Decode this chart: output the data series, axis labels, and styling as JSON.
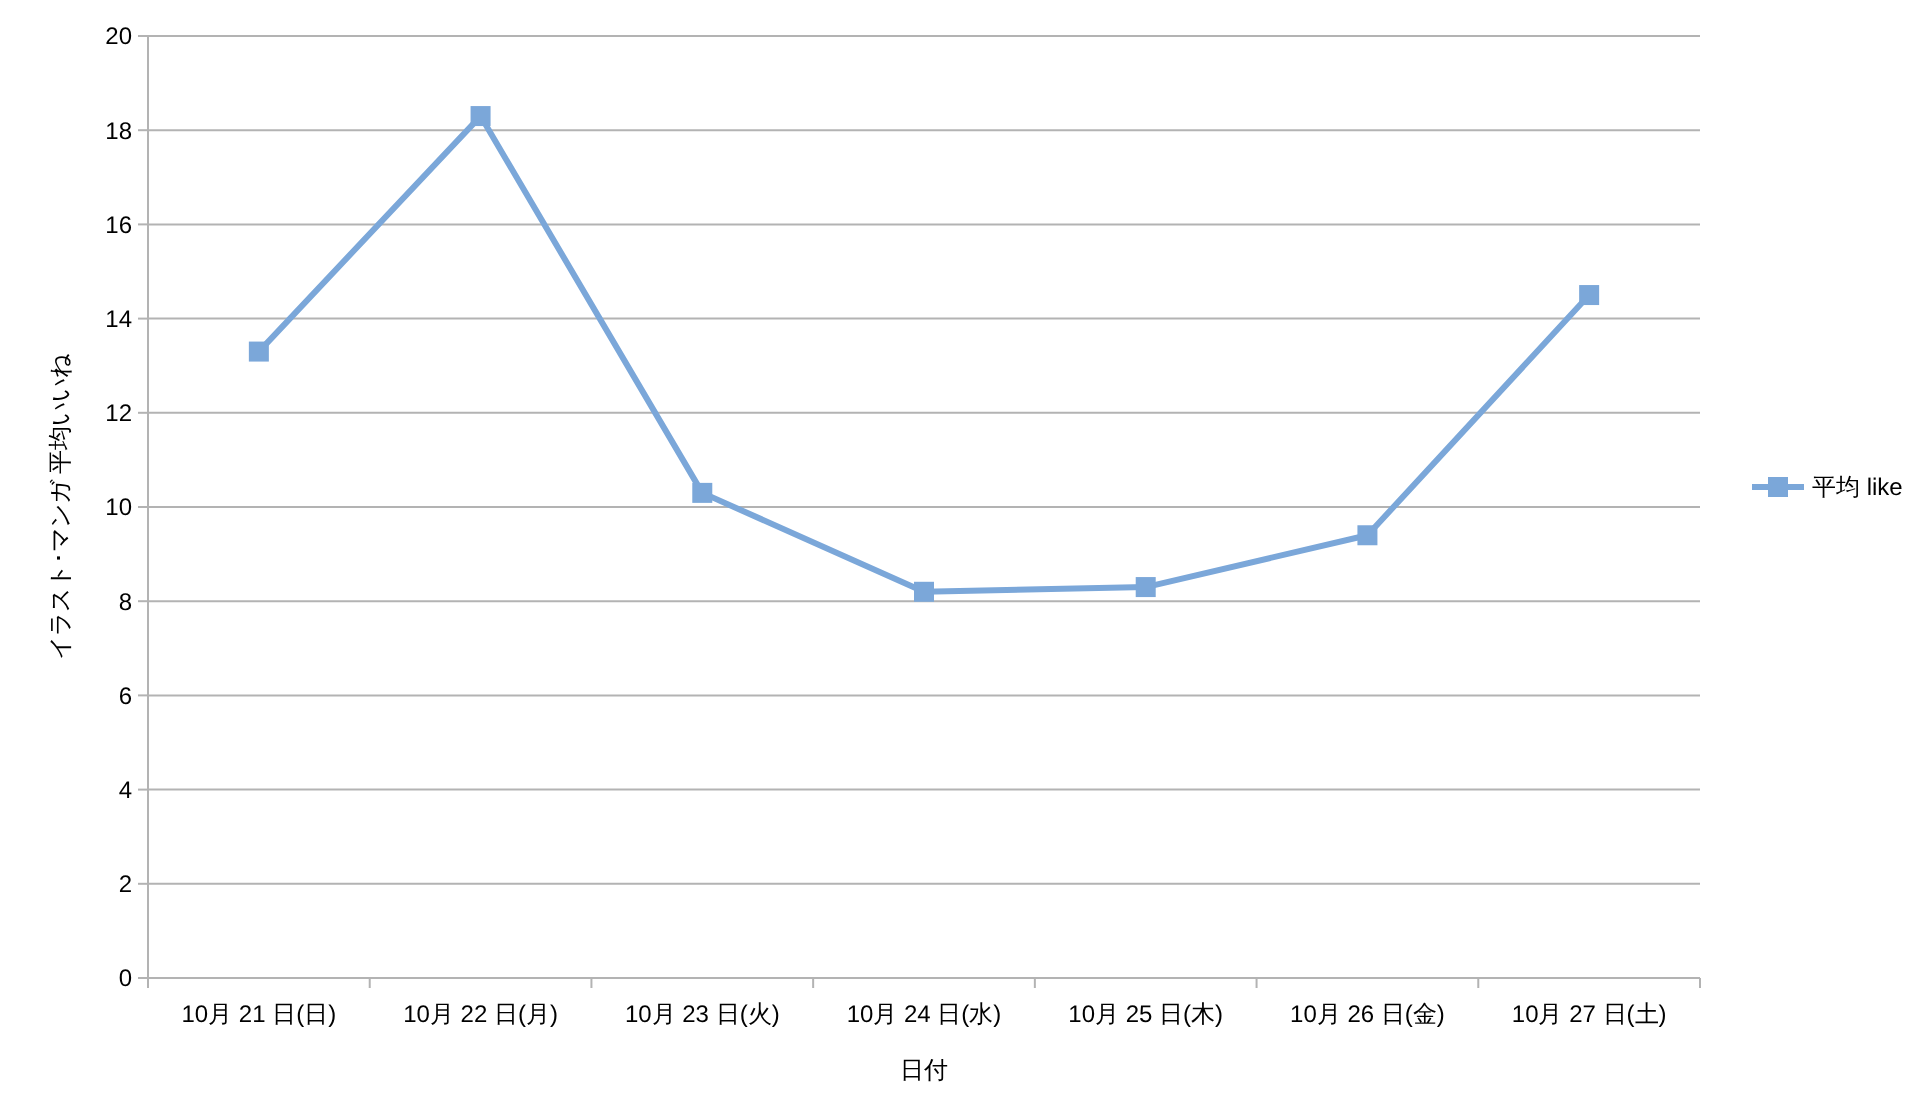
{
  "chart_data": {
    "type": "line",
    "xlabel": "日付",
    "ylabel": "イラスト･マンガ 平均いいね",
    "categories": [
      "10月 21 日(日)",
      "10月 22 日(月)",
      "10月 23 日(火)",
      "10月 24 日(水)",
      "10月 25 日(木)",
      "10月 26 日(金)",
      "10月 27 日(土)"
    ],
    "series": [
      {
        "name": "平均 like",
        "color": "#7ba7d9",
        "values": [
          13.3,
          18.3,
          10.3,
          8.2,
          8.3,
          9.4,
          14.5
        ]
      }
    ],
    "ylim": [
      0,
      20
    ],
    "yticks": [
      0,
      2,
      4,
      6,
      8,
      10,
      12,
      14,
      16,
      18,
      20
    ],
    "grid": "y",
    "legend": "right",
    "marker": "square",
    "line_style": "solid"
  }
}
